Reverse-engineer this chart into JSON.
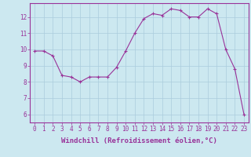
{
  "x": [
    0,
    1,
    2,
    3,
    4,
    5,
    6,
    7,
    8,
    9,
    10,
    11,
    12,
    13,
    14,
    15,
    16,
    17,
    18,
    19,
    20,
    21,
    22,
    23
  ],
  "y": [
    9.9,
    9.9,
    9.6,
    8.4,
    8.3,
    8.0,
    8.3,
    8.3,
    8.3,
    8.9,
    9.9,
    11.0,
    11.9,
    12.2,
    12.1,
    12.5,
    12.4,
    12.0,
    12.0,
    12.5,
    12.2,
    10.0,
    8.8,
    6.0
  ],
  "line_color": "#993399",
  "marker": "+",
  "bg_color": "#cce8f0",
  "grid_color": "#aaccdd",
  "xlabel": "Windchill (Refroidissement éolien,°C)",
  "ylabel_ticks": [
    6,
    7,
    8,
    9,
    10,
    11,
    12
  ],
  "xlim": [
    -0.5,
    23.5
  ],
  "ylim": [
    5.5,
    12.85
  ],
  "xticks": [
    0,
    1,
    2,
    3,
    4,
    5,
    6,
    7,
    8,
    9,
    10,
    11,
    12,
    13,
    14,
    15,
    16,
    17,
    18,
    19,
    20,
    21,
    22,
    23
  ],
  "tick_color": "#993399",
  "label_fontsize": 6.5,
  "tick_fontsize": 5.5,
  "axis_color": "#993399"
}
